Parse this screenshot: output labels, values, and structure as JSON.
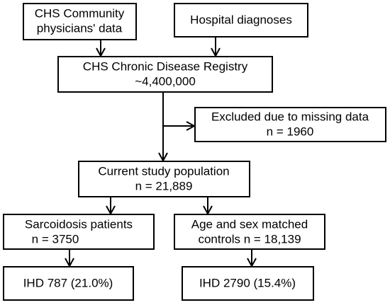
{
  "nodes": [
    {
      "lines": [
        "CHS Community",
        "physicians' data"
      ]
    },
    {
      "lines": [
        "Hospital diagnoses"
      ]
    },
    {
      "lines": [
        "CHS Chronic Disease Registry",
        "~4,400,000"
      ]
    },
    {
      "lines": [
        "Excluded due to missing data",
        "n = 1960"
      ]
    },
    {
      "lines": [
        "Current study population",
        "n = 21,889"
      ]
    },
    {
      "lines": [
        "Sarcoidosis patients",
        "n = 3750"
      ]
    },
    {
      "lines": [
        "Age and sex matched",
        "controls n = 18,139"
      ]
    },
    {
      "lines": [
        "IHD 787 (21.0%)"
      ]
    },
    {
      "lines": [
        "IHD 2790 (15.4%)"
      ]
    }
  ]
}
